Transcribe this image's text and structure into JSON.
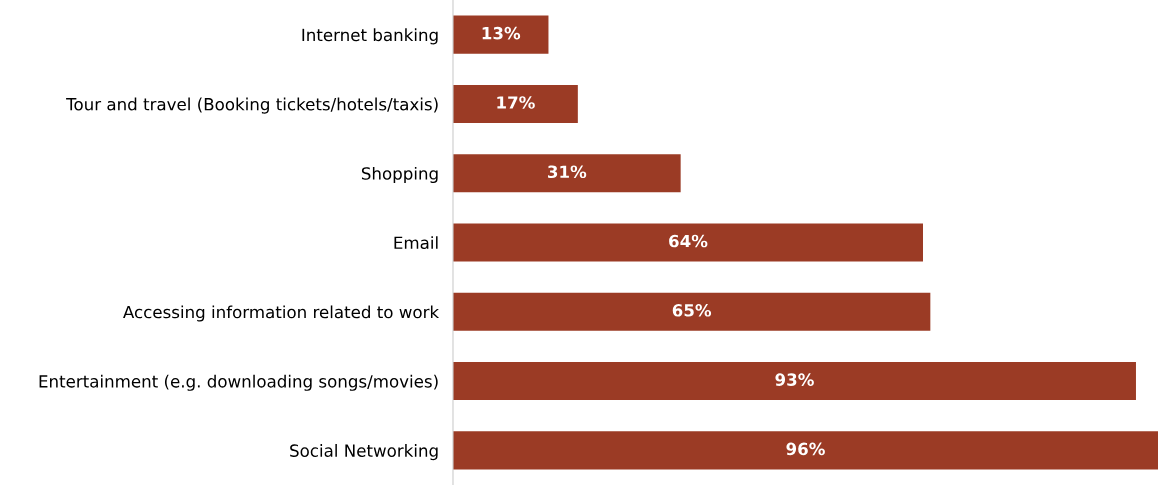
{
  "chart_data": {
    "type": "bar",
    "orientation": "horizontal",
    "categories": [
      "Internet banking",
      "Tour and travel (Booking tickets/hotels/taxis)",
      "Shopping",
      "Email",
      "Accessing information related to work",
      "Entertainment (e.g. downloading songs/movies)",
      "Social Networking"
    ],
    "values": [
      13,
      17,
      31,
      64,
      65,
      93,
      96
    ],
    "value_labels": [
      "13%",
      "17%",
      "31%",
      "64%",
      "65%",
      "93%",
      "96%"
    ],
    "color": "#9b3b25",
    "grid": false,
    "legend": false
  }
}
